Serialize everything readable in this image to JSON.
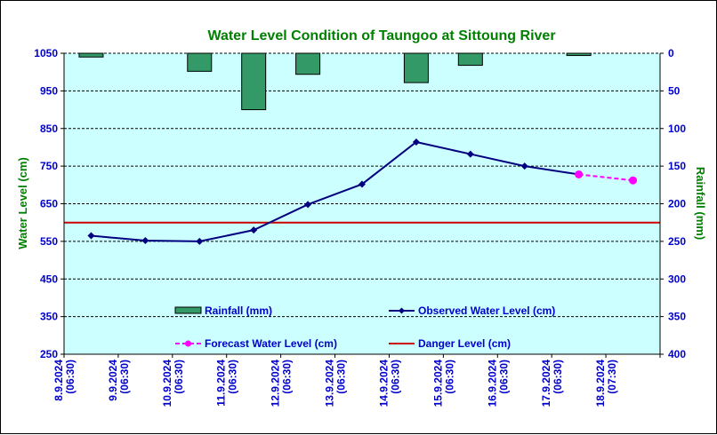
{
  "colors": {
    "plot_background": "#ccffff",
    "rainfall_fill": "#339966",
    "observed_line": "#000080",
    "forecast_line": "#ff00ff",
    "danger_line": "#cc0000",
    "tick_label": "#0000cc",
    "title": "#008000"
  },
  "chart_data": {
    "type": "line",
    "title": "Water Level Condition of Taungoo at  Sittoung River",
    "ylabel": "Water Level (cm)",
    "y2label": "Rainfall (mm)",
    "ylim": [
      250,
      1050
    ],
    "y2lim": [
      0,
      400
    ],
    "y2_inverted": true,
    "yticks": [
      250,
      350,
      450,
      550,
      650,
      750,
      850,
      950,
      1050
    ],
    "y2ticks": [
      0,
      50,
      100,
      150,
      200,
      250,
      300,
      350,
      400
    ],
    "grid": true,
    "categories": [
      {
        "date": "8.9.2024",
        "time": "(06:30)"
      },
      {
        "date": "9.9.2024",
        "time": "(06:30)"
      },
      {
        "date": "10.9.2024",
        "time": "(06:30)"
      },
      {
        "date": "11.9.2024",
        "time": "(06:30)"
      },
      {
        "date": "12.9.2024",
        "time": "(06:30)"
      },
      {
        "date": "13.9.2024",
        "time": "(06:30)"
      },
      {
        "date": "14.9.2024",
        "time": "(06:30)"
      },
      {
        "date": "15.9.2024",
        "time": "(06:30)"
      },
      {
        "date": "16.9.2024",
        "time": "(06:30)"
      },
      {
        "date": "17.9.2024",
        "time": "(06:30)"
      },
      {
        "date": "18.9.2024",
        "time": "(07:30)"
      }
    ],
    "series": [
      {
        "name": "Rainfall (mm)",
        "type": "bar",
        "axis": "right",
        "values": [
          5,
          null,
          24,
          75,
          28,
          null,
          39,
          16,
          null,
          3,
          null
        ]
      },
      {
        "name": "Observed Water Level (cm)",
        "type": "line",
        "axis": "left",
        "values": [
          565,
          552,
          550,
          580,
          648,
          702,
          814,
          782,
          750,
          728,
          null
        ]
      },
      {
        "name": "Forecast Water Level (cm)",
        "type": "line",
        "dashed": true,
        "axis": "left",
        "values": [
          null,
          null,
          null,
          null,
          null,
          null,
          null,
          null,
          null,
          728,
          712
        ]
      },
      {
        "name": "Danger Level (cm)",
        "type": "hline",
        "axis": "left",
        "value": 600
      }
    ]
  }
}
